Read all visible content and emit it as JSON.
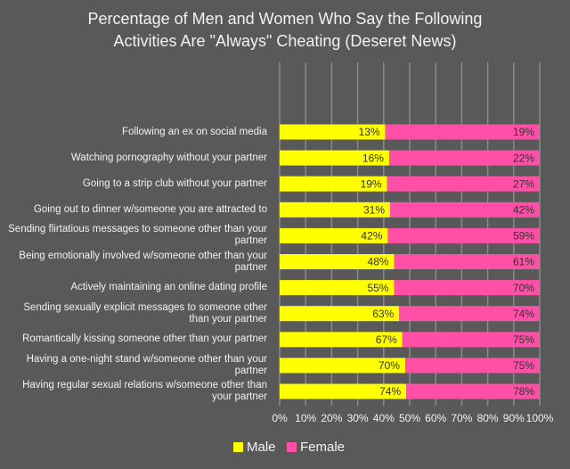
{
  "chart_data": {
    "type": "bar",
    "orientation": "horizontal",
    "stacked": "percent",
    "title": [
      "Percentage of Men and Women Who Say the Following",
      "Activities Are \"Always\" Cheating (Deseret News)"
    ],
    "categories": [
      "Following an ex on social media",
      "Watching pornography without your partner",
      "Going to a strip club without your partner",
      "Going out to dinner w/someone you are attracted to",
      "Sending flirtatious messages to someone other than your partner",
      "Being emotionally involved w/someone other than your partner",
      "Actively maintaining an online dating profile",
      "Sending sexually explicit messages to someone other than your partner",
      "Romantically kissing someone other than your partner",
      "Having a one-night stand w/someone other than your partner",
      "Having regular sexual relations w/someone other than your partner"
    ],
    "series": [
      {
        "name": "Male",
        "color": "#ffff00",
        "values": [
          13,
          16,
          19,
          31,
          42,
          48,
          55,
          63,
          67,
          70,
          74
        ],
        "value_labels": [
          "13%",
          "16%",
          "19%",
          "31%",
          "42%",
          "48%",
          "55%",
          "63%",
          "67%",
          "70%",
          "74%"
        ]
      },
      {
        "name": "Female",
        "color": "#ff4fa7",
        "values": [
          19,
          22,
          27,
          42,
          59,
          61,
          70,
          74,
          75,
          75,
          78
        ],
        "value_labels": [
          "19%",
          "22%",
          "27%",
          "42%",
          "59%",
          "61%",
          "70%",
          "74%",
          "75%",
          "75%",
          "78%"
        ]
      }
    ],
    "xlim": [
      0,
      100
    ],
    "xticks": [
      {
        "value": 0,
        "label": "0%"
      },
      {
        "value": 10,
        "label": "10%"
      },
      {
        "value": 20,
        "label": "20%"
      },
      {
        "value": 30,
        "label": "30%"
      },
      {
        "value": 40,
        "label": "40%"
      },
      {
        "value": 50,
        "label": "50%"
      },
      {
        "value": 60,
        "label": "60%"
      },
      {
        "value": 70,
        "label": "70%"
      },
      {
        "value": 80,
        "label": "80%"
      },
      {
        "value": 90,
        "label": "90%"
      },
      {
        "value": 100,
        "label": "100%"
      }
    ],
    "grid": true,
    "legend": "bottom"
  }
}
